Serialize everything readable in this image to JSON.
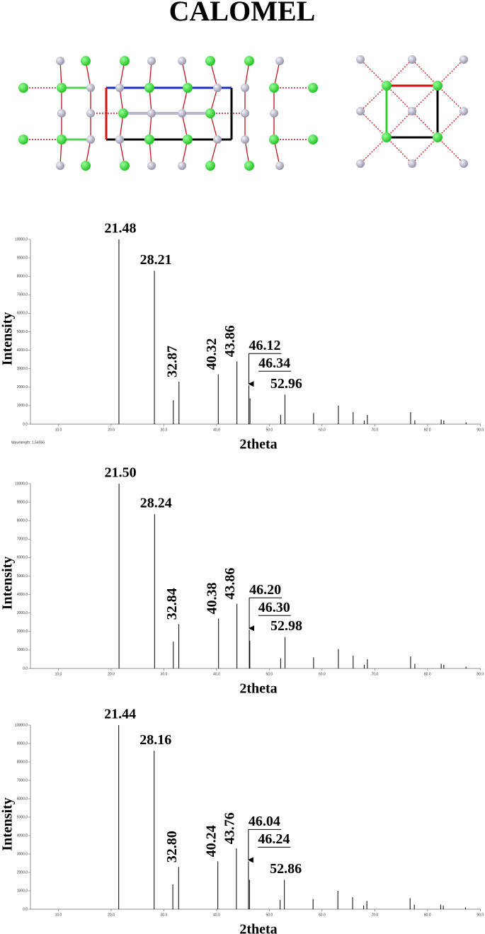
{
  "title": "CALOMEL",
  "chart_data": [
    {
      "type": "stem",
      "xlabel": "2theta",
      "ylabel": "Intensity",
      "note": "Wavelength: 1.54056",
      "x": [
        21.48,
        28.21,
        31.8,
        32.87,
        40.32,
        43.86,
        46.12,
        46.34,
        52.15,
        52.96,
        58.4,
        63.1,
        65.9,
        68.0,
        68.6,
        76.8,
        77.6,
        82.6,
        83.1,
        87.3
      ],
      "values": [
        10000,
        8300,
        1300,
        2300,
        2700,
        3400,
        2100,
        1400,
        500,
        1600,
        600,
        1000,
        650,
        200,
        500,
        650,
        200,
        250,
        200,
        100
      ],
      "peak_labels": [
        21.48,
        28.21,
        32.87,
        40.32,
        43.86,
        46.12,
        46.34,
        52.96
      ],
      "color": "#000000",
      "xlim": [
        4.7,
        90.1
      ],
      "xticks": [
        {
          "value": 10,
          "label": "10.0"
        },
        {
          "value": 20,
          "label": "20.0"
        },
        {
          "value": 30,
          "label": "30.0"
        },
        {
          "value": 40,
          "label": "40.0"
        },
        {
          "value": 50,
          "label": "50.0"
        },
        {
          "value": 60,
          "label": "60.0"
        },
        {
          "value": 70,
          "label": "70.0"
        },
        {
          "value": 80,
          "label": "80.0"
        },
        {
          "value": 90,
          "label": "90.0"
        }
      ],
      "ylim": [
        0,
        10000
      ],
      "yticks": [
        {
          "value": 0,
          "label": "0.0"
        },
        {
          "value": 1000,
          "label": "1000.0"
        },
        {
          "value": 2000,
          "label": "2000.0"
        },
        {
          "value": 3000,
          "label": "3000.0"
        },
        {
          "value": 4000,
          "label": "4000.0"
        },
        {
          "value": 5000,
          "label": "5000.0"
        },
        {
          "value": 6000,
          "label": "6000.0"
        },
        {
          "value": 7000,
          "label": "7000.0"
        },
        {
          "value": 8000,
          "label": "8000.0"
        },
        {
          "value": 9000,
          "label": "9000.0"
        },
        {
          "value": 10000,
          "label": "10000.0"
        }
      ]
    },
    {
      "type": "stem",
      "xlabel": "2theta",
      "ylabel": "Intensity",
      "x": [
        21.5,
        28.24,
        31.8,
        32.84,
        40.38,
        43.86,
        46.2,
        46.3,
        52.15,
        52.98,
        58.4,
        63.1,
        65.9,
        68.0,
        68.6,
        76.8,
        77.6,
        82.6,
        83.1,
        87.3
      ],
      "values": [
        10000,
        8350,
        1450,
        2400,
        2700,
        3500,
        2100,
        1500,
        550,
        1700,
        600,
        1050,
        700,
        200,
        500,
        650,
        250,
        250,
        200,
        100
      ],
      "peak_labels": [
        {
          "value": 21.5,
          "label": "21.50"
        },
        28.24,
        32.84,
        40.38,
        43.86,
        {
          "value": 46.2,
          "label": "46.20"
        },
        {
          "value": 46.3,
          "label": "46.30"
        },
        52.98
      ],
      "color": "#000000",
      "xlim": [
        4.7,
        90.1
      ],
      "xticks": [
        {
          "value": 10,
          "label": "10.0"
        },
        {
          "value": 20,
          "label": "20.0"
        },
        {
          "value": 30,
          "label": "30.0"
        },
        {
          "value": 40,
          "label": "40.0"
        },
        {
          "value": 50,
          "label": "50.0"
        },
        {
          "value": 60,
          "label": "60.0"
        },
        {
          "value": 70,
          "label": "70.0"
        },
        {
          "value": 80,
          "label": "80.0"
        },
        {
          "value": 90,
          "label": "90.0"
        }
      ],
      "ylim": [
        0,
        10000
      ],
      "yticks": [
        {
          "value": 0,
          "label": "0.0"
        },
        {
          "value": 1000,
          "label": "1000.0"
        },
        {
          "value": 2000,
          "label": "2000.0"
        },
        {
          "value": 3000,
          "label": "3000.0"
        },
        {
          "value": 4000,
          "label": "4000.0"
        },
        {
          "value": 5000,
          "label": "5000.0"
        },
        {
          "value": 6000,
          "label": "6000.0"
        },
        {
          "value": 7000,
          "label": "7000.0"
        },
        {
          "value": 8000,
          "label": "8000.0"
        },
        {
          "value": 9000,
          "label": "9000.0"
        },
        {
          "value": 10000,
          "label": "10000.0"
        }
      ]
    },
    {
      "type": "stem",
      "xlabel": "2theta",
      "ylabel": "Intensity",
      "x": [
        21.44,
        28.16,
        31.7,
        32.8,
        40.24,
        43.76,
        46.04,
        46.24,
        52.05,
        52.86,
        58.3,
        63.0,
        65.8,
        67.9,
        68.5,
        76.7,
        77.5,
        82.5,
        83.0,
        87.2
      ],
      "values": [
        10000,
        8600,
        1350,
        2300,
        2600,
        3300,
        2600,
        1600,
        500,
        1600,
        550,
        1000,
        650,
        200,
        450,
        600,
        250,
        250,
        200,
        100
      ],
      "peak_labels": [
        21.44,
        28.16,
        {
          "value": 32.8,
          "label": "32.80"
        },
        40.24,
        43.76,
        46.04,
        46.24,
        52.86
      ],
      "color": "#000000",
      "xlim": [
        4.7,
        90.1
      ],
      "xticks": [
        {
          "value": 10,
          "label": "10.0"
        },
        {
          "value": 20,
          "label": "20.0"
        },
        {
          "value": 30,
          "label": "30.0"
        },
        {
          "value": 40,
          "label": "40.0"
        },
        {
          "value": 50,
          "label": "50.0"
        },
        {
          "value": 60,
          "label": "60.0"
        },
        {
          "value": 70,
          "label": "70.0"
        },
        {
          "value": 80,
          "label": "80.0"
        },
        {
          "value": 90,
          "label": "90.0"
        }
      ],
      "ylim": [
        0,
        10000
      ],
      "yticks": [
        {
          "value": 0,
          "label": "0.0"
        },
        {
          "value": 1000,
          "label": "1000.0"
        },
        {
          "value": 2000,
          "label": "2000.0"
        },
        {
          "value": 3000,
          "label": "3000.0"
        },
        {
          "value": 4000,
          "label": "4000.0"
        },
        {
          "value": 5000,
          "label": "5000.0"
        },
        {
          "value": 6000,
          "label": "6000.0"
        },
        {
          "value": 7000,
          "label": "7000.0"
        },
        {
          "value": 8000,
          "label": "8000.0"
        },
        {
          "value": 9000,
          "label": "9000.0"
        },
        {
          "value": 10000,
          "label": "10000.0"
        }
      ]
    }
  ]
}
